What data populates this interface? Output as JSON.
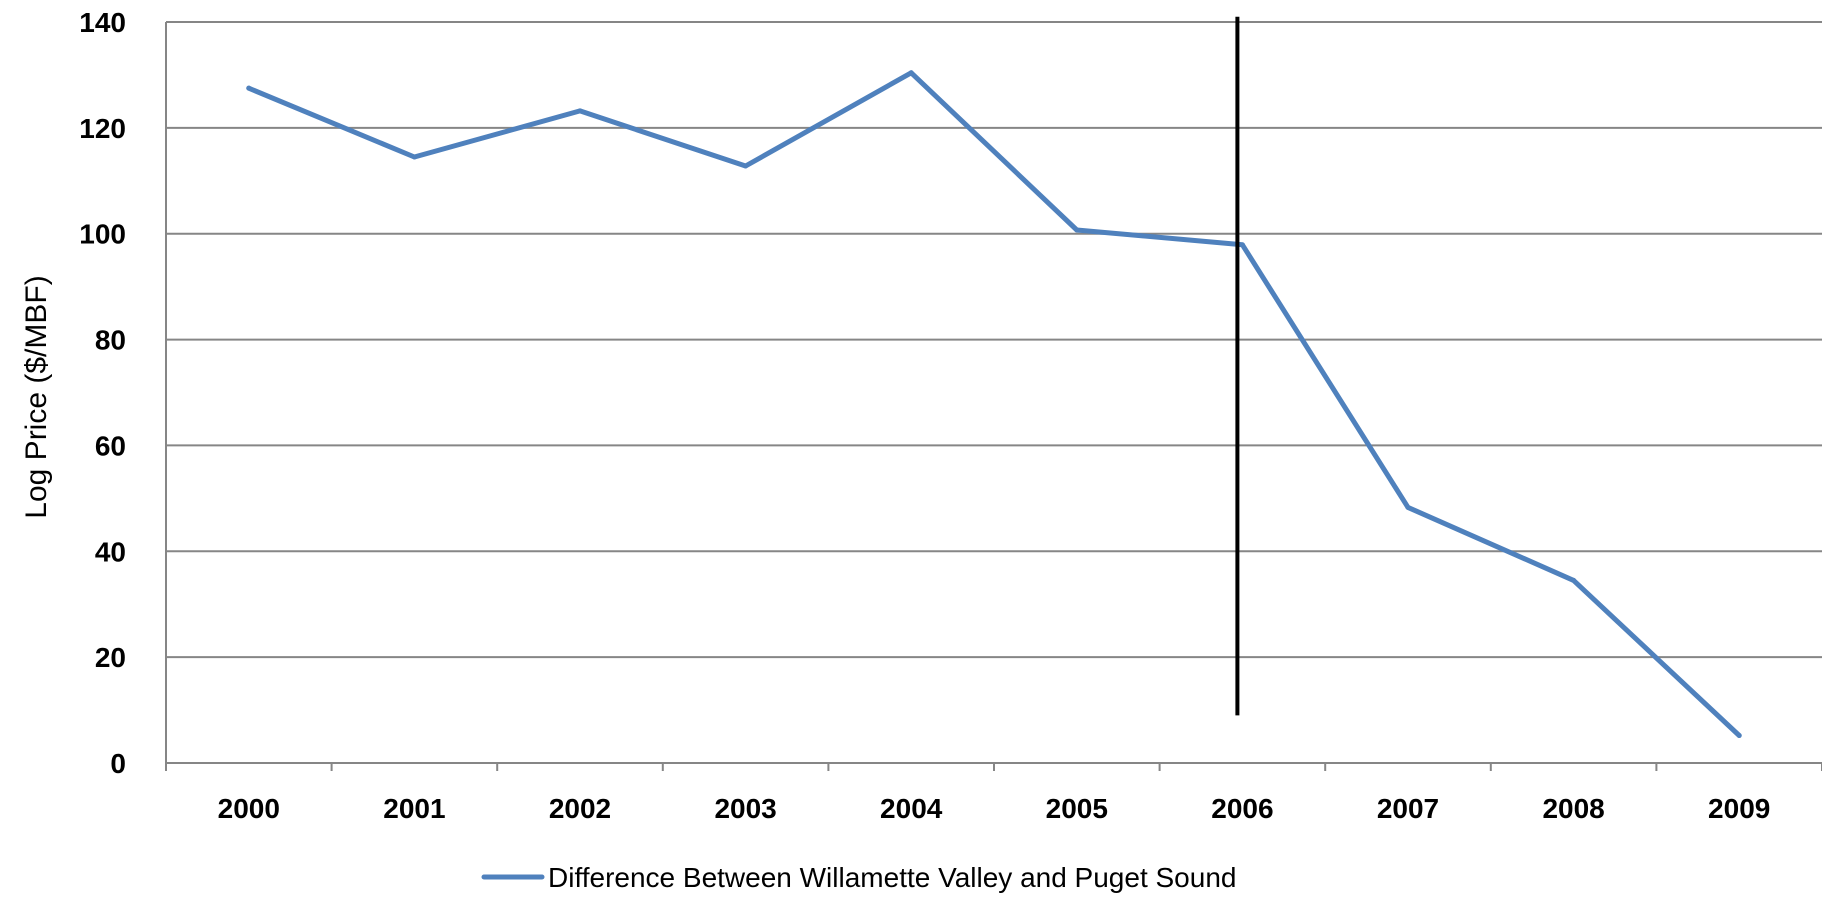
{
  "chart_data": {
    "type": "line",
    "title": "",
    "xlabel": "",
    "ylabel": "Log Price ($/MBF)",
    "categories": [
      "2000",
      "2001",
      "2002",
      "2003",
      "2004",
      "2005",
      "2006",
      "2007",
      "2008",
      "2009"
    ],
    "series": [
      {
        "name": "Difference Between Willamette Valley and Puget Sound",
        "values": [
          127.5,
          114.5,
          123.2,
          112.8,
          130.4,
          100.7,
          97.9,
          48.3,
          34.5,
          5.2
        ],
        "color": "#4f81bd"
      }
    ],
    "ylim": [
      0,
      140
    ],
    "yticks": [
      "0",
      "20",
      "40",
      "60",
      "80",
      "100",
      "120",
      "140"
    ],
    "grid": "horizontal",
    "legend_position": "bottom",
    "reference_line": {
      "orientation": "vertical",
      "at_category": "2006",
      "color": "#000000",
      "y_from": 9,
      "y_to": 141
    }
  }
}
